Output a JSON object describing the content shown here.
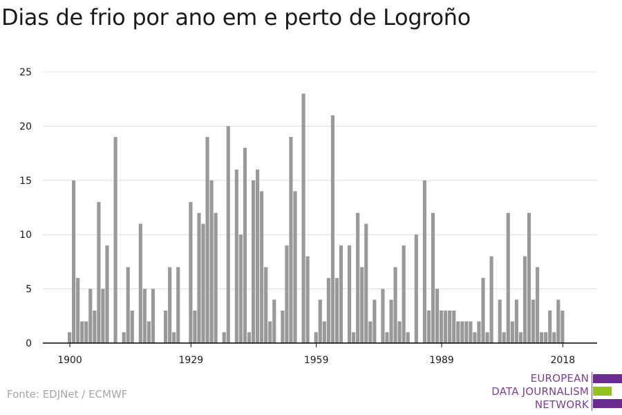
{
  "title": "Dias de frio por ano em e perto de Logroño",
  "source": "Fonte: EDJNet / ECMWF",
  "logo": {
    "lines": [
      "EUROPEAN",
      "DATA JOURNALISM",
      "NETWORK"
    ],
    "purple": "#6a2c91",
    "green": "#95c11f"
  },
  "colors": {
    "bar": "#999999",
    "grid": "#dddddd",
    "axis": "#000000",
    "text": "#1a1a1a"
  },
  "chart_data": {
    "type": "bar",
    "title": "Dias de frio por ano em e perto de Logroño",
    "xlabel": "",
    "ylabel": "",
    "ylim": [
      0,
      25
    ],
    "y_ticks": [
      0,
      5,
      10,
      15,
      20,
      25
    ],
    "x_ticks": [
      1900,
      1929,
      1959,
      1989,
      2018
    ],
    "grid": true,
    "x": [
      1900,
      1901,
      1902,
      1903,
      1904,
      1905,
      1906,
      1907,
      1908,
      1909,
      1910,
      1911,
      1912,
      1913,
      1914,
      1915,
      1916,
      1917,
      1918,
      1919,
      1920,
      1921,
      1922,
      1923,
      1924,
      1925,
      1926,
      1927,
      1928,
      1929,
      1930,
      1931,
      1932,
      1933,
      1934,
      1935,
      1936,
      1937,
      1938,
      1939,
      1940,
      1941,
      1942,
      1943,
      1944,
      1945,
      1946,
      1947,
      1948,
      1949,
      1950,
      1951,
      1952,
      1953,
      1954,
      1955,
      1956,
      1957,
      1958,
      1959,
      1960,
      1961,
      1962,
      1963,
      1964,
      1965,
      1966,
      1967,
      1968,
      1969,
      1970,
      1971,
      1972,
      1973,
      1974,
      1975,
      1976,
      1977,
      1978,
      1979,
      1980,
      1981,
      1982,
      1983,
      1984,
      1985,
      1986,
      1987,
      1988,
      1989,
      1990,
      1991,
      1992,
      1993,
      1994,
      1995,
      1996,
      1997,
      1998,
      1999,
      2000,
      2001,
      2002,
      2003,
      2004,
      2005,
      2006,
      2007,
      2008,
      2009,
      2010,
      2011,
      2012,
      2013,
      2014,
      2015,
      2016,
      2017,
      2018,
      2019,
      2020
    ],
    "values": [
      1,
      15,
      6,
      2,
      2,
      5,
      3,
      13,
      5,
      9,
      0,
      19,
      0,
      1,
      7,
      3,
      0,
      11,
      5,
      2,
      5,
      0,
      0,
      3,
      7,
      1,
      7,
      0,
      0,
      13,
      3,
      12,
      11,
      19,
      15,
      12,
      0,
      1,
      20,
      0,
      16,
      10,
      18,
      1,
      15,
      16,
      14,
      7,
      2,
      4,
      0,
      3,
      9,
      19,
      14,
      0,
      23,
      8,
      0,
      1,
      4,
      2,
      6,
      21,
      6,
      9,
      0,
      9,
      1,
      12,
      7,
      11,
      2,
      4,
      0,
      5,
      1,
      4,
      7,
      2,
      9,
      1,
      0,
      10,
      0,
      15,
      3,
      12,
      5,
      3,
      3,
      3,
      3,
      2,
      2,
      2,
      2,
      1,
      2,
      6,
      1,
      8,
      0,
      4,
      1,
      12,
      2,
      4,
      1,
      8,
      12,
      4,
      7,
      1,
      1,
      3,
      1,
      4,
      3,
      0,
      0
    ]
  }
}
